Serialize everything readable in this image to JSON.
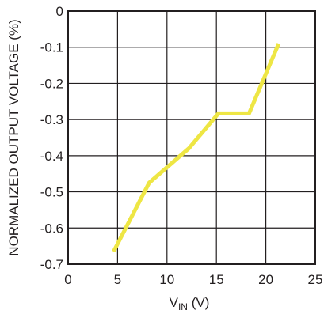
{
  "chart_data": {
    "type": "line",
    "xlabel": "V",
    "xlabel_subscript": "IN",
    "xlabel_unit": " (V)",
    "ylabel": "NORMALIZED OUTPUT VOLTAGE (%)",
    "xlim": [
      0,
      25
    ],
    "ylim": [
      -0.7,
      0
    ],
    "x_ticks": [
      0,
      5,
      10,
      15,
      20,
      25
    ],
    "x_tick_labels": [
      "0",
      "5",
      "10",
      "15",
      "20",
      "25"
    ],
    "y_ticks": [
      0,
      -0.1,
      -0.2,
      -0.3,
      -0.4,
      -0.5,
      -0.6,
      -0.7
    ],
    "y_tick_labels": [
      "0",
      "-0.1",
      "-0.2",
      "-0.3",
      "-0.4",
      "-0.5",
      "-0.6",
      "-0.7"
    ],
    "grid": true,
    "series": [
      {
        "color": "#eee644",
        "x": [
          4.6,
          8.2,
          12.2,
          15.2,
          18.3,
          21.3
        ],
        "y": [
          -0.665,
          -0.475,
          -0.38,
          -0.283,
          -0.283,
          -0.09
        ]
      }
    ]
  }
}
